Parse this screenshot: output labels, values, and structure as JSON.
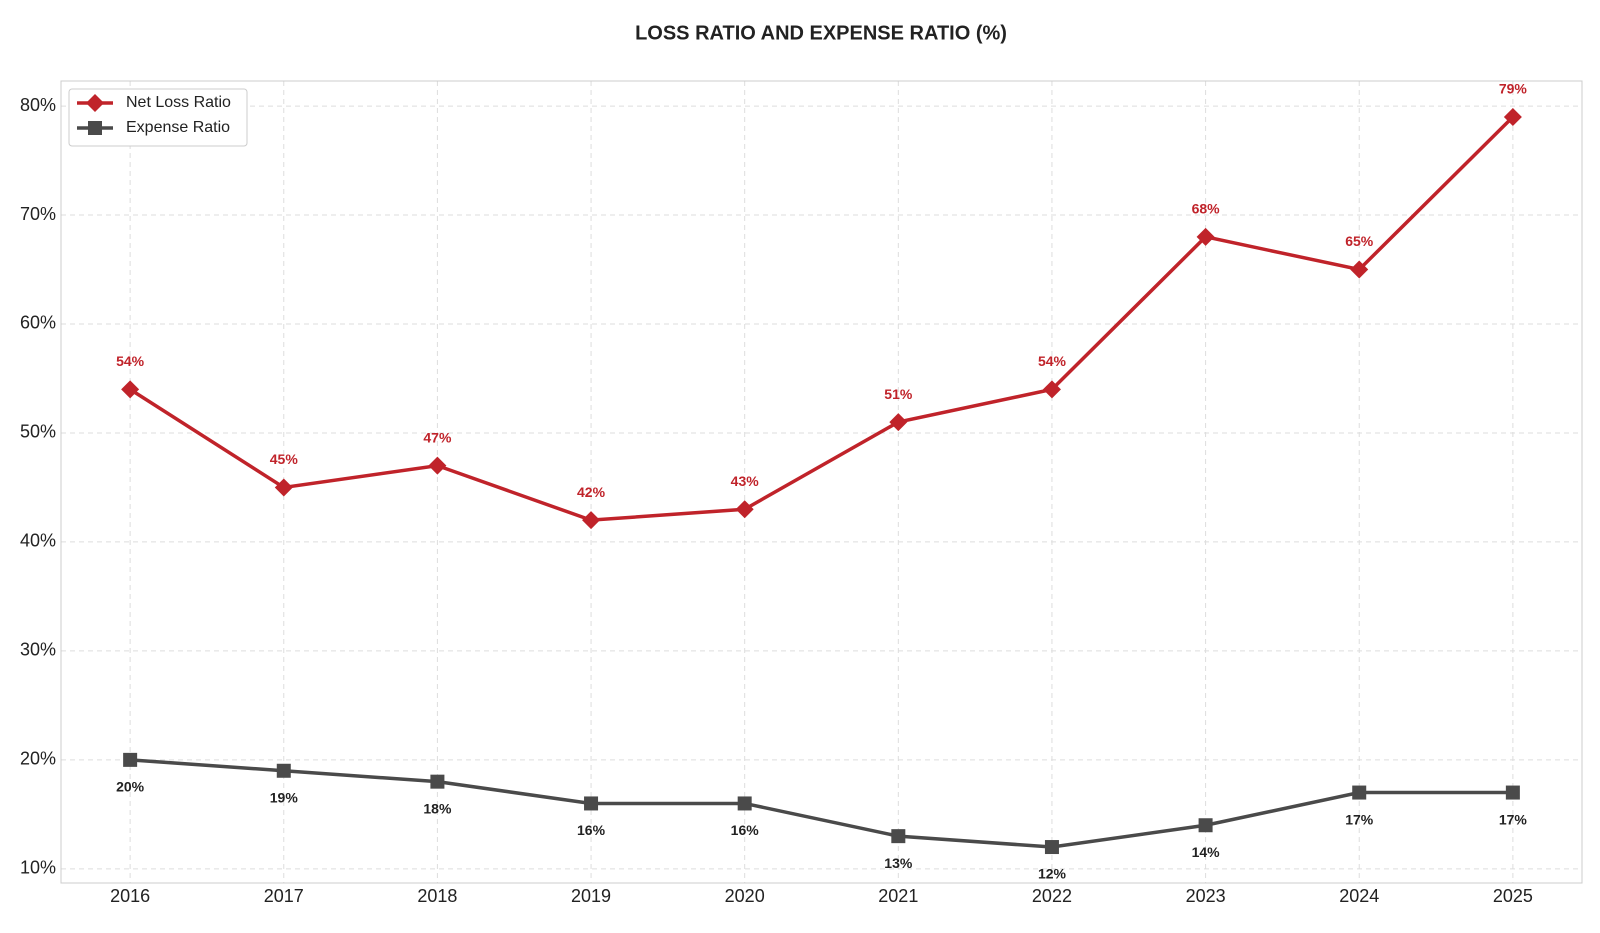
{
  "chart_data": {
    "type": "line",
    "title": "LOSS RATIO AND EXPENSE RATIO (%)",
    "x": [
      2016,
      2017,
      2018,
      2019,
      2020,
      2021,
      2022,
      2023,
      2024,
      2025
    ],
    "xlim": [
      2015.55,
      2025.45
    ],
    "xticks": [
      2016,
      2017,
      2018,
      2019,
      2020,
      2021,
      2022,
      2023,
      2024,
      2025
    ],
    "ylim": [
      8.7,
      82.3
    ],
    "yticks": [
      {
        "value": 10,
        "label": "10%"
      },
      {
        "value": 20,
        "label": "20%"
      },
      {
        "value": 30,
        "label": "30%"
      },
      {
        "value": 40,
        "label": "40%"
      },
      {
        "value": 50,
        "label": "50%"
      },
      {
        "value": 60,
        "label": "60%"
      },
      {
        "value": 70,
        "label": "70%"
      },
      {
        "value": 80,
        "label": "80%"
      }
    ],
    "grid": true,
    "legend": "upper-left",
    "series": [
      {
        "name": "Net Loss Ratio",
        "color": "#c0232a",
        "marker": "diamond",
        "values": [
          54,
          45,
          47,
          42,
          43,
          51,
          54,
          68,
          65,
          79
        ],
        "value_labels": [
          "54%",
          "45%",
          "47%",
          "42%",
          "43%",
          "51%",
          "54%",
          "68%",
          "65%",
          "79%"
        ]
      },
      {
        "name": "Expense Ratio",
        "color": "#4a4a4a",
        "marker": "square",
        "values": [
          20,
          19,
          18,
          16,
          16,
          13,
          12,
          14,
          17,
          17
        ],
        "value_labels": [
          "20%",
          "19%",
          "18%",
          "16%",
          "16%",
          "13%",
          "12%",
          "14%",
          "17%",
          "17%"
        ]
      }
    ]
  }
}
